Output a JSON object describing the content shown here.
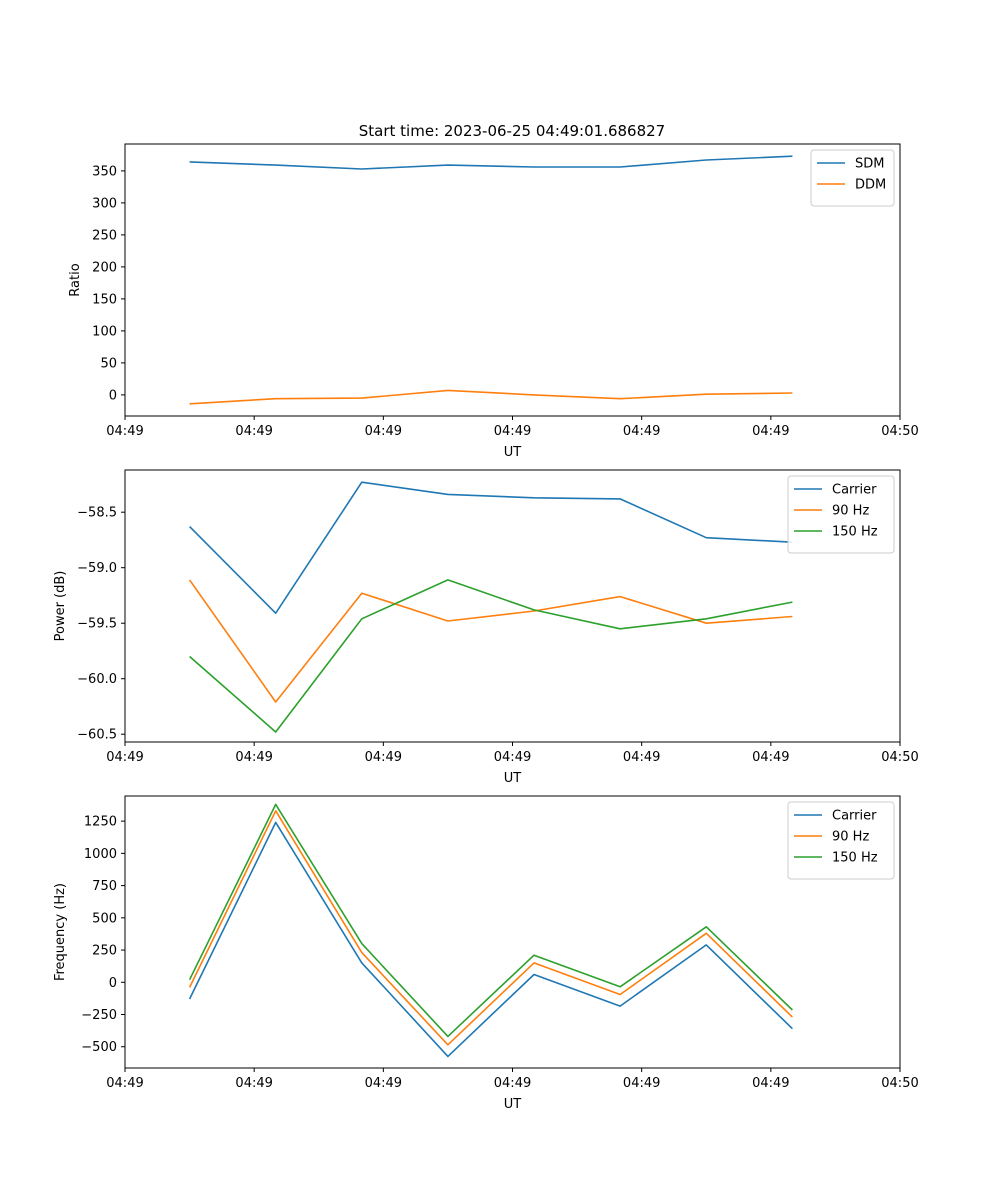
{
  "figure": {
    "title": "Start time: 2023-06-25 04:49:01.686827"
  },
  "colors": {
    "blue": "#1f77b4",
    "orange": "#ff7f0e",
    "green": "#2ca02c"
  },
  "chart_data": [
    {
      "type": "line",
      "title": "Start time: 2023-06-25 04:49:01.686827",
      "xlabel": "UT",
      "ylabel": "Ratio",
      "x_ticks": [
        "04:49",
        "04:49",
        "04:49",
        "04:49",
        "04:49",
        "04:49",
        "04:50"
      ],
      "x_range": [
        -1,
        17
      ],
      "x": [
        0.5,
        2.5,
        4.5,
        6.5,
        8.5,
        10.5,
        12.5,
        14.5
      ],
      "ylim": [
        -33,
        392
      ],
      "y_ticks": [
        0,
        50,
        100,
        150,
        200,
        250,
        300,
        350
      ],
      "grid": false,
      "legend_position": "upper right",
      "series": [
        {
          "name": "SDM",
          "color": "#1f77b4",
          "values": [
            364,
            359,
            353,
            359,
            356,
            356,
            367,
            373
          ]
        },
        {
          "name": "DDM",
          "color": "#ff7f0e",
          "values": [
            -14,
            -6,
            -5,
            7,
            0,
            -6,
            1,
            3
          ]
        }
      ]
    },
    {
      "type": "line",
      "title": "",
      "xlabel": "UT",
      "ylabel": "Power (dB)",
      "x_ticks": [
        "04:49",
        "04:49",
        "04:49",
        "04:49",
        "04:49",
        "04:49",
        "04:50"
      ],
      "x_range": [
        -1,
        17
      ],
      "x": [
        0.5,
        2.5,
        4.5,
        6.5,
        8.5,
        10.5,
        12.5,
        14.5
      ],
      "ylim": [
        -60.57,
        -58.12
      ],
      "y_ticks": [
        -60.5,
        -60.0,
        -59.5,
        -59.0,
        -58.5
      ],
      "grid": false,
      "legend_position": "upper right",
      "series": [
        {
          "name": "Carrier",
          "color": "#1f77b4",
          "values": [
            -58.63,
            -59.41,
            -58.23,
            -58.34,
            -58.37,
            -58.38,
            -58.73,
            -58.77
          ]
        },
        {
          "name": "90 Hz",
          "color": "#ff7f0e",
          "values": [
            -59.11,
            -60.21,
            -59.23,
            -59.48,
            -59.39,
            -59.26,
            -59.5,
            -59.44
          ]
        },
        {
          "name": "150 Hz",
          "color": "#2ca02c",
          "values": [
            -59.8,
            -60.48,
            -59.46,
            -59.11,
            -59.38,
            -59.55,
            -59.46,
            -59.31
          ]
        }
      ]
    },
    {
      "type": "line",
      "title": "",
      "xlabel": "UT",
      "ylabel": "Frequency (Hz)",
      "x_ticks": [
        "04:49",
        "04:49",
        "04:49",
        "04:49",
        "04:49",
        "04:49",
        "04:50"
      ],
      "x_range": [
        -1,
        17
      ],
      "x": [
        0.5,
        2.5,
        4.5,
        6.5,
        8.5,
        10.5,
        12.5,
        14.5
      ],
      "ylim": [
        -665,
        1445
      ],
      "y_ticks": [
        -500,
        -250,
        0,
        250,
        500,
        750,
        1000,
        1250
      ],
      "grid": false,
      "legend_position": "upper right",
      "series": [
        {
          "name": "Carrier",
          "color": "#1f77b4",
          "values": [
            -130,
            1240,
            150,
            -575,
            60,
            -185,
            290,
            -360
          ]
        },
        {
          "name": "90 Hz",
          "color": "#ff7f0e",
          "values": [
            -40,
            1330,
            230,
            -485,
            150,
            -95,
            380,
            -270
          ]
        },
        {
          "name": "150 Hz",
          "color": "#2ca02c",
          "values": [
            20,
            1380,
            300,
            -420,
            210,
            -35,
            430,
            -215
          ]
        }
      ]
    }
  ]
}
